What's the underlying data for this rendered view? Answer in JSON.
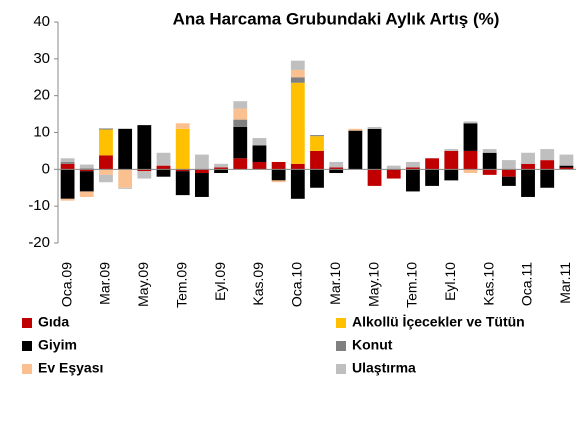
{
  "chart_data": {
    "type": "bar",
    "stacked": true,
    "title": "Ana Harcama Grubundaki Aylık Artış (%)",
    "categories": [
      "Oca.09",
      null,
      "Mar.09",
      null,
      "May.09",
      null,
      "Tem.09",
      null,
      "Eyl.09",
      null,
      "Kas.09",
      null,
      "Oca.10",
      null,
      "Mar.10",
      null,
      "May.10",
      null,
      "Tem.10",
      null,
      "Eyl.10",
      null,
      "Kas.10",
      null,
      "Oca.11",
      null,
      "Mar.11"
    ],
    "series": [
      {
        "name": "Gıda",
        "color": "#c00000",
        "values": [
          1.5,
          -0.5,
          3.8,
          0,
          -0.5,
          1,
          -0.5,
          -1,
          0.5,
          3,
          2,
          2,
          1.5,
          5,
          0.5,
          0,
          -4.5,
          -2.5,
          0.5,
          3,
          5,
          5,
          -1.5,
          -2,
          1.5,
          2.5,
          0.5
        ]
      },
      {
        "name": "Alkollü İçecekler ve Tütün",
        "color": "#ffc000",
        "values": [
          0,
          0,
          7,
          0,
          0,
          0,
          11,
          0,
          0,
          0,
          0,
          0,
          22,
          4,
          0,
          0,
          0,
          0,
          0,
          0,
          0,
          0,
          0,
          0,
          0,
          0,
          0
        ]
      },
      {
        "name": "Giyim",
        "color": "#000000",
        "values": [
          -8,
          -5.5,
          0,
          11,
          12,
          -2,
          -6.5,
          -6.5,
          -1,
          8.5,
          4.5,
          -3,
          -8,
          -5,
          -1,
          10.5,
          11,
          0,
          -6,
          -4.5,
          -3,
          7.5,
          4.5,
          -2.5,
          -7.5,
          -5,
          0.5
        ]
      },
      {
        "name": "Konut",
        "color": "#808080",
        "values": [
          0.5,
          0.3,
          0.3,
          0,
          0,
          0,
          0,
          0,
          0,
          2,
          0,
          0,
          1.5,
          0.3,
          0,
          0,
          0,
          0,
          0,
          0,
          0,
          0,
          0,
          0,
          0,
          0,
          0
        ]
      },
      {
        "name": "Ev Eşyası",
        "color": "#fac090",
        "values": [
          -0.5,
          -1.5,
          -1.5,
          -5,
          0,
          0,
          1.5,
          0,
          0,
          3,
          0,
          -0.5,
          2,
          0,
          0,
          0.5,
          0,
          0,
          0,
          0,
          0,
          -1,
          0,
          0,
          0,
          0,
          0
        ]
      },
      {
        "name": "Ulaştırma",
        "color": "#bfbfbf",
        "values": [
          1,
          1,
          -2,
          -0.3,
          -2,
          3.5,
          0,
          4,
          1,
          2,
          2,
          0,
          2.5,
          0,
          1.5,
          0,
          0.5,
          1,
          1.5,
          0,
          0.5,
          0.5,
          1,
          2.5,
          3,
          3,
          3
        ]
      }
    ],
    "ylim": [
      -20,
      40
    ],
    "yticks": [
      -20,
      -10,
      0,
      10,
      20,
      30,
      40
    ]
  }
}
